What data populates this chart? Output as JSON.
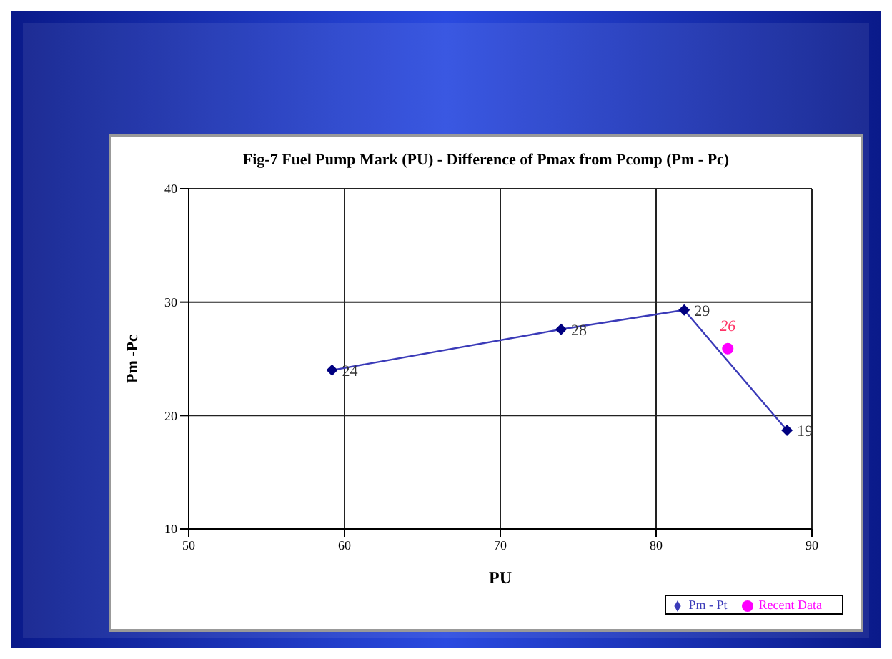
{
  "chart_data": {
    "type": "line",
    "title": "Fig-7 Fuel Pump Mark (PU) - Difference of Pmax from Pcomp  (Pm - Pc)",
    "xlabel": "PU",
    "ylabel": "Pm -Pc",
    "xlim": [
      50,
      90
    ],
    "xticks": [
      50,
      60,
      70,
      80,
      90
    ],
    "ylim": [
      10,
      40
    ],
    "yticks": [
      10,
      20,
      30,
      40
    ],
    "grid": true,
    "legend": "bottom right",
    "series": [
      {
        "name": "Pm - Pt",
        "color": "#3a3ab8",
        "marker": "diamond",
        "x": [
          59.2,
          73.9,
          81.8,
          88.4
        ],
        "values": [
          24.0,
          27.6,
          29.3,
          18.7
        ],
        "value_labels": [
          "24",
          "28",
          "29",
          "19"
        ]
      },
      {
        "name": "Recent Data",
        "type": "scatter",
        "color": "#ff00ff",
        "marker": "circle",
        "x": [
          84.6
        ],
        "values": [
          25.9
        ],
        "value_labels": [
          "26"
        ]
      }
    ]
  }
}
